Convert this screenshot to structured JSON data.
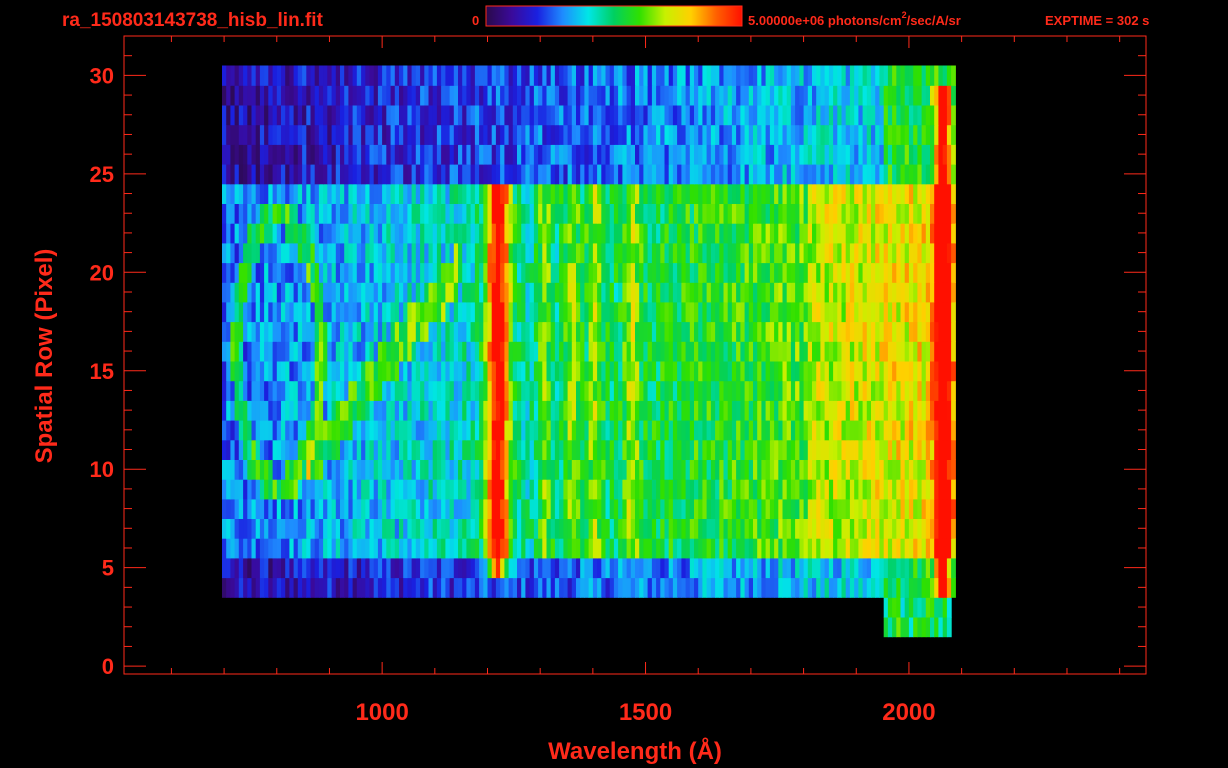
{
  "header": {
    "filename": "ra_150803143738_hisb_lin.fit",
    "colorbar_min": "0",
    "colorbar_max_prefix": "5.00000e+06 photons/cm",
    "colorbar_max_sup": "2",
    "colorbar_max_suffix": "/sec/A/sr",
    "exptime": "EXPTIME = 302 s"
  },
  "colors": {
    "text": "#ff2a1a",
    "axis": "#ff2a1a",
    "background": "#000000",
    "colormap": [
      "#2a0a4a",
      "#3a0a9a",
      "#1a20e0",
      "#1e8cff",
      "#00e6e6",
      "#00d060",
      "#30e000",
      "#c8f000",
      "#ffd000",
      "#ff6000",
      "#ff1000"
    ]
  },
  "chart_data": {
    "type": "heatmap",
    "title": "ra_150803143738_hisb_lin.fit",
    "xlabel": "Wavelength (Å)",
    "ylabel": "Spatial Row (Pixel)",
    "xlim": [
      510,
      2450
    ],
    "ylim": [
      -0.4,
      32
    ],
    "xticks": [
      1000,
      1500,
      2000
    ],
    "yticks": [
      0,
      5,
      10,
      15,
      20,
      25,
      30
    ],
    "colorbar": {
      "min": 0,
      "max": 5000000,
      "units": "photons/cm²/sec/A/sr"
    },
    "exptime_s": 302,
    "emission_features": [
      {
        "wavelength": 1216,
        "rows": [
          5,
          24
        ],
        "intensity": "peak"
      },
      {
        "wavelength": 1304,
        "rows": [
          6,
          24
        ],
        "intensity": "moderate"
      },
      {
        "wavelength": 1356,
        "rows": [
          6,
          24
        ],
        "intensity": "moderate"
      },
      {
        "wavelength": 1400,
        "rows": [
          6,
          24
        ],
        "intensity": "moderate"
      },
      {
        "wavelength": 1470,
        "rows": [
          6,
          24
        ],
        "intensity": "moderate"
      },
      {
        "wavelength": 2060,
        "rows": [
          2,
          29
        ],
        "intensity": "high"
      }
    ]
  }
}
